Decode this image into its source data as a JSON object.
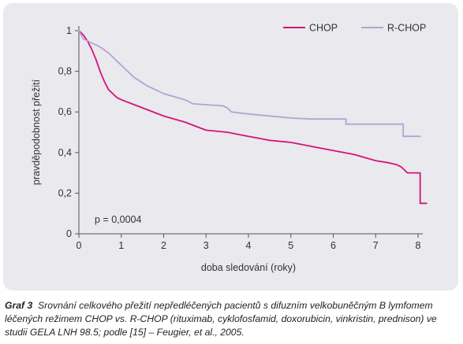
{
  "chart_data": {
    "type": "line",
    "xlabel": "doba sledování (roky)",
    "ylabel": "pravděpodobnost přežití",
    "xlim": [
      0,
      8
    ],
    "ylim": [
      0,
      1
    ],
    "x_ticks": [
      "0",
      "1",
      "2",
      "3",
      "4",
      "5",
      "6",
      "7",
      "8"
    ],
    "y_ticks": [
      "0",
      "0,2",
      "0,4",
      "0,6",
      "0,8",
      "1"
    ],
    "legend_position": "top-right",
    "annotation": "p = 0,0004",
    "series": [
      {
        "name": "CHOP",
        "color": "#d6127a",
        "x": [
          0,
          0.1,
          0.2,
          0.3,
          0.4,
          0.5,
          0.6,
          0.7,
          0.8,
          0.9,
          1.0,
          1.5,
          2.0,
          2.5,
          3.0,
          3.5,
          4.0,
          4.5,
          5.0,
          5.5,
          6.0,
          6.5,
          7.0,
          7.3,
          7.5,
          7.6,
          7.75,
          8.05,
          8.05,
          8.2
        ],
        "y": [
          1.0,
          0.98,
          0.95,
          0.91,
          0.86,
          0.8,
          0.75,
          0.71,
          0.69,
          0.67,
          0.66,
          0.62,
          0.58,
          0.55,
          0.51,
          0.5,
          0.48,
          0.46,
          0.45,
          0.43,
          0.41,
          0.39,
          0.36,
          0.35,
          0.34,
          0.33,
          0.3,
          0.3,
          0.15,
          0.15
        ]
      },
      {
        "name": "R-CHOP",
        "color": "#b4a3d2",
        "x": [
          0,
          0.1,
          0.3,
          0.5,
          0.7,
          0.9,
          1.0,
          1.3,
          1.6,
          2.0,
          2.5,
          2.7,
          3.4,
          3.5,
          3.6,
          4.0,
          5.0,
          5.5,
          6.3,
          6.3,
          7.65,
          7.65,
          8.05
        ],
        "y": [
          1.0,
          0.96,
          0.94,
          0.92,
          0.89,
          0.85,
          0.83,
          0.77,
          0.73,
          0.69,
          0.66,
          0.64,
          0.63,
          0.62,
          0.6,
          0.59,
          0.57,
          0.565,
          0.565,
          0.54,
          0.54,
          0.48,
          0.48
        ]
      }
    ]
  },
  "caption": {
    "label": "Graf 3",
    "text": "Srovnání celkového přežití nepředléčených pacientů s difuzním velkobuněčným B lymfomem léčených režimem CHOP vs. R-CHOP (rituximab, cyklofosfamid, doxorubicin, vinkristin, prednison) ve studii GELA LNH 98.5; podle [15] – Feugier, et al., 2005."
  }
}
